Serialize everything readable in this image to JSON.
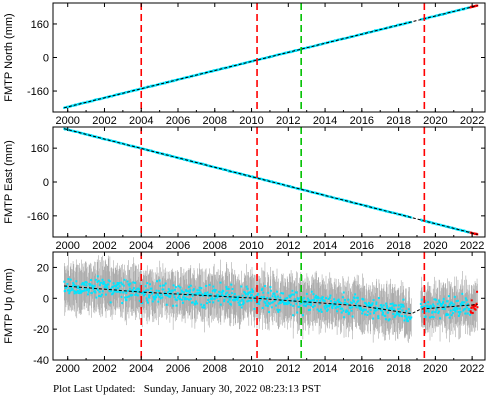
{
  "chart_data": [
    {
      "type": "scatter",
      "ylabel": "FMTP North (mm)",
      "xlim": [
        1999.2,
        2022.7
      ],
      "ylim": [
        -260,
        260
      ],
      "xticks": [
        2000,
        2002,
        2004,
        2006,
        2008,
        2010,
        2012,
        2014,
        2016,
        2018,
        2020,
        2022
      ],
      "xtick_labels": [
        "2000",
        "2002",
        "2004",
        "2006",
        "2008",
        "2010",
        "2012",
        "2014",
        "2016",
        "2018",
        "2020",
        "2022"
      ],
      "yticks": [
        -160,
        0,
        160
      ],
      "ytick_labels": [
        "-160",
        "0",
        "160"
      ],
      "trend": {
        "x": [
          1999.8,
          2022.3
        ],
        "y": [
          -240,
          248
        ]
      },
      "data_gap": [
        2018.7,
        2019.2
      ],
      "scatter_ranges": [
        [
          1999.8,
          2018.7
        ],
        [
          2019.2,
          2022.3
        ]
      ],
      "series_color": "#00e5ff",
      "trend_color": "#000000",
      "recent_color": "#ff0000",
      "recent_range": [
        2021.9,
        2022.3
      ],
      "red_lines": [
        2004.0,
        2010.3,
        2019.4
      ],
      "green_lines": [
        2012.7
      ],
      "red_line_color": "#ff0000",
      "green_line_color": "#00c000",
      "grid": false
    },
    {
      "type": "scatter",
      "ylabel": "FMTP East (mm)",
      "xlim": [
        1999.2,
        2022.7
      ],
      "ylim": [
        -260,
        260
      ],
      "xticks": [
        2000,
        2002,
        2004,
        2006,
        2008,
        2010,
        2012,
        2014,
        2016,
        2018,
        2020,
        2022
      ],
      "xtick_labels": [
        "2000",
        "2002",
        "2004",
        "2006",
        "2008",
        "2010",
        "2012",
        "2014",
        "2016",
        "2018",
        "2020",
        "2022"
      ],
      "yticks": [
        -160,
        0,
        160
      ],
      "ytick_labels": [
        "-160",
        "0",
        "160"
      ],
      "trend": {
        "x": [
          1999.8,
          2022.3
        ],
        "y": [
          252,
          -248
        ]
      },
      "data_gap": [
        2018.7,
        2019.2
      ],
      "scatter_ranges": [
        [
          1999.8,
          2018.7
        ],
        [
          2019.2,
          2022.3
        ]
      ],
      "series_color": "#00e5ff",
      "trend_color": "#000000",
      "recent_color": "#ff0000",
      "recent_range": [
        2021.9,
        2022.3
      ],
      "red_lines": [
        2004.0,
        2010.3,
        2019.4
      ],
      "green_lines": [
        2012.7
      ],
      "red_line_color": "#ff0000",
      "green_line_color": "#00c000",
      "grid": false
    },
    {
      "type": "scatter",
      "ylabel": "FMTP Up (mm)",
      "xlim": [
        1999.2,
        2022.7
      ],
      "ylim": [
        -40,
        30
      ],
      "xticks": [
        2000,
        2002,
        2004,
        2006,
        2008,
        2010,
        2012,
        2014,
        2016,
        2018,
        2020,
        2022
      ],
      "xtick_labels": [
        "2000",
        "2002",
        "2004",
        "2006",
        "2008",
        "2010",
        "2012",
        "2014",
        "2016",
        "2018",
        "2020",
        "2022"
      ],
      "yticks": [
        -40,
        -20,
        0,
        20
      ],
      "ytick_labels": [
        "-40",
        "-20",
        "0",
        "20"
      ],
      "trend": {
        "x": [
          1999.8,
          2004.0,
          2010.3,
          2016.0,
          2018.7,
          2019.2,
          2022.3
        ],
        "y": [
          8,
          4,
          0,
          -5,
          -10,
          -7,
          -4
        ]
      },
      "data_gap": [
        2018.7,
        2019.2
      ],
      "scatter_ranges": [
        [
          1999.8,
          2018.7
        ],
        [
          2019.2,
          2022.3
        ]
      ],
      "scatter_spread": 10,
      "error_bar_halfwidth": 14,
      "series_color": "#00e5ff",
      "error_bar_color": "#aaaaaa",
      "trend_color": "#000000",
      "recent_color": "#ff0000",
      "recent_range": [
        2021.9,
        2022.3
      ],
      "red_lines": [
        2004.0,
        2010.3,
        2019.4
      ],
      "green_lines": [
        2012.7
      ],
      "red_line_color": "#ff0000",
      "green_line_color": "#00c000",
      "grid": false
    }
  ],
  "footer": {
    "label": "Plot Last Updated:",
    "timestamp": "Sunday, January 30, 2022 08:23:13 PST"
  }
}
